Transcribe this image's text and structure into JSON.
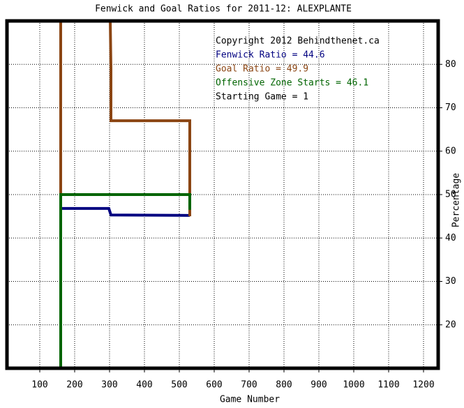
{
  "chart_data": {
    "type": "line",
    "title": "Fenwick and Goal Ratios for 2011-12: ALEXPLANTE",
    "x_label": "Game Number",
    "y_label": "Percentage",
    "annotations": [
      "Copyright 2012 Behindthenet.ca",
      "Starting Game = 1"
    ],
    "xlim": [
      6,
      1242
    ],
    "xticks": [
      100,
      200,
      300,
      400,
      500,
      600,
      700,
      800,
      900,
      1000,
      1100,
      1200
    ],
    "ylim": [
      10,
      90
    ],
    "yticks": [
      20,
      30,
      40,
      50,
      60,
      70,
      80
    ],
    "grid": true,
    "series": [
      {
        "name": "Fenwick Ratio = 44.6",
        "color": "#000080",
        "x": [
          160,
          298,
          304,
          530
        ],
        "values": [
          46.8,
          46.8,
          45.3,
          45.2
        ]
      },
      {
        "name": "Goal Ratio = 49.9",
        "color": "#8b4513",
        "x": [
          160,
          160,
          302,
          302,
          304,
          304,
          530,
          530
        ],
        "values": [
          90,
          50,
          null,
          90,
          79,
          67,
          67,
          45
        ]
      },
      {
        "name": "Offensive Zone Starts = 46.1",
        "color": "#006400",
        "x": [
          160,
          160,
          530,
          530
        ],
        "values": [
          10,
          50,
          50,
          46.5
        ]
      }
    ]
  }
}
